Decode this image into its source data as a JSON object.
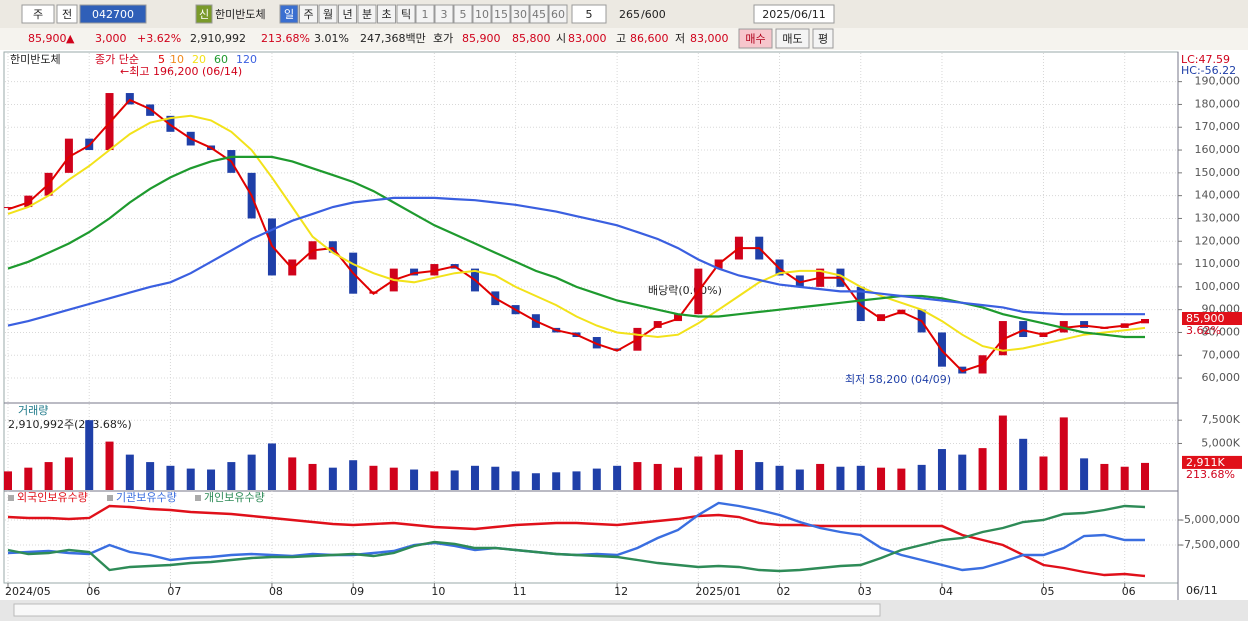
{
  "toolbar": {
    "market": "주",
    "prefix": "전",
    "code": "042700",
    "new": "신",
    "name": "한미반도체",
    "periods": [
      "일",
      "주",
      "월",
      "년",
      "분",
      "초",
      "틱"
    ],
    "intervals": [
      "1",
      "3",
      "5",
      "10",
      "15",
      "30",
      "45",
      "60"
    ],
    "interval_select": "5",
    "count": "265",
    "max": "/600",
    "date": "2025/06/11"
  },
  "quote": {
    "price": "85,900",
    "arrow": "▲",
    "change": "3,000",
    "rate": "+3.62%",
    "volume": "2,910,992",
    "volume_rate": "213.68%",
    "turnover": "3.01%",
    "amount": "247,368백만",
    "ask_label": "호가",
    "ask": "85,900",
    "bid": "85,800",
    "open_label": "시",
    "open": "83,000",
    "high_label": "고",
    "high": "86,600",
    "low_label": "저",
    "low": "83,000",
    "buy": "매수",
    "sell": "매도",
    "avg": "평"
  },
  "categories": [
    "2024/05",
    null,
    null,
    null,
    "06",
    null,
    null,
    null,
    "07",
    null,
    null,
    null,
    null,
    "08",
    null,
    null,
    null,
    "09",
    null,
    null,
    null,
    "10",
    null,
    null,
    null,
    "11",
    null,
    null,
    null,
    null,
    "12",
    null,
    null,
    null,
    "2025/01",
    null,
    null,
    null,
    "02",
    null,
    null,
    null,
    "03",
    null,
    null,
    null,
    "04",
    null,
    null,
    null,
    null,
    "05",
    null,
    null,
    null,
    "06",
    null
  ],
  "end_date": "06/11",
  "price": {
    "name": "한미반도체",
    "ma_label": "종가 단순",
    "up_color": "#d0021b",
    "down_color": "#1f3fa8",
    "ylim": [
      49500,
      203000
    ],
    "yticks": [
      {
        "value": 60000,
        "label": "60,000"
      },
      {
        "value": 70000,
        "label": "70,000"
      },
      {
        "value": 80000,
        "label": "80,000"
      },
      {
        "value": 90000,
        "label": "90,000"
      },
      {
        "value": 100000,
        "label": "100,000"
      },
      {
        "value": 110000,
        "label": "110,000"
      },
      {
        "value": 120000,
        "label": "120,000"
      },
      {
        "value": 130000,
        "label": "130,000"
      },
      {
        "value": 140000,
        "label": "140,000"
      },
      {
        "value": 150000,
        "label": "150,000"
      },
      {
        "value": 160000,
        "label": "160,000"
      },
      {
        "value": 170000,
        "label": "170,000"
      },
      {
        "value": 180000,
        "label": "180,000"
      },
      {
        "value": 190000,
        "label": "190,000"
      }
    ],
    "close": [
      135000,
      140000,
      150000,
      165000,
      160000,
      185000,
      180000,
      175000,
      168000,
      162000,
      160000,
      150000,
      130000,
      105000,
      112000,
      120000,
      115000,
      97000,
      98000,
      108000,
      105000,
      110000,
      108000,
      98000,
      92000,
      88000,
      82000,
      80000,
      78000,
      73000,
      72000,
      82000,
      85000,
      88000,
      108000,
      112000,
      122000,
      112000,
      105000,
      100000,
      108000,
      100000,
      85000,
      88000,
      90000,
      80000,
      65000,
      62000,
      70000,
      85000,
      78000,
      80000,
      85000,
      82000,
      82000,
      84000,
      85900
    ],
    "series": [
      {
        "name": "5",
        "color": "#e00000",
        "values": [
          134000,
          137000,
          145000,
          157000,
          162000,
          172000,
          182000,
          178000,
          171000,
          165000,
          161000,
          155000,
          140000,
          118000,
          108000,
          116000,
          117000,
          106000,
          97000,
          103000,
          106000,
          107000,
          109000,
          103000,
          95000,
          90000,
          85000,
          81000,
          79000,
          75000,
          72000,
          77000,
          83000,
          86000,
          98000,
          110000,
          117000,
          117000,
          108000,
          102000,
          104000,
          104000,
          92000,
          86000,
          89000,
          85000,
          72000,
          63000,
          66000,
          77000,
          81000,
          79000,
          82000,
          83000,
          82000,
          83000,
          85000
        ]
      },
      {
        "name": "20",
        "color": "#f2e21a",
        "values": [
          132000,
          135000,
          140000,
          147000,
          153000,
          160000,
          167000,
          172000,
          174000,
          175000,
          173000,
          168000,
          160000,
          148000,
          135000,
          122000,
          115000,
          110000,
          106000,
          103000,
          102000,
          104000,
          106000,
          107000,
          105000,
          100000,
          96000,
          92000,
          87000,
          83000,
          80000,
          79000,
          78000,
          79000,
          84000,
          90000,
          96000,
          102000,
          106000,
          107000,
          107000,
          105000,
          100000,
          96000,
          93000,
          90000,
          85000,
          79000,
          74000,
          72000,
          73000,
          75000,
          77000,
          79000,
          80000,
          81000,
          82000
        ]
      },
      {
        "name": "60",
        "color": "#1e9a2e",
        "values": [
          108000,
          111000,
          115000,
          119000,
          124000,
          130000,
          137000,
          143000,
          148000,
          152000,
          155000,
          157000,
          157000,
          157000,
          155000,
          152000,
          149000,
          146000,
          142000,
          137000,
          132000,
          127000,
          123000,
          119000,
          115000,
          111000,
          107000,
          104000,
          100000,
          97000,
          94000,
          92000,
          90000,
          88000,
          87000,
          87000,
          88000,
          89000,
          90000,
          91000,
          92000,
          93000,
          94000,
          95000,
          96000,
          96000,
          95000,
          93000,
          91000,
          88000,
          86000,
          84000,
          82000,
          80000,
          79000,
          78000,
          78000
        ]
      },
      {
        "name": "120",
        "color": "#3a5fe0",
        "values": [
          83000,
          85000,
          87500,
          90000,
          92500,
          95000,
          97500,
          100000,
          102000,
          106000,
          111000,
          116000,
          121000,
          125000,
          129000,
          132000,
          135000,
          137000,
          138000,
          139000,
          139000,
          139000,
          138500,
          138000,
          137000,
          136000,
          134500,
          133000,
          131000,
          129000,
          127000,
          124000,
          121000,
          117000,
          112000,
          108000,
          105000,
          103000,
          101000,
          100000,
          99000,
          98000,
          98000,
          97000,
          96000,
          95000,
          94000,
          93000,
          92000,
          91000,
          89000,
          88500,
          88000,
          88000,
          88000,
          88000,
          88000
        ]
      }
    ],
    "extra_legend": [
      {
        "name": "10",
        "color": "#f08a1c"
      }
    ],
    "high_note": "←최고 196,200 (06/14)",
    "low_note": "최저 58,200 (04/09)",
    "dividend_note": "배당락(0.00%)",
    "lc": "LC:47.59",
    "hc": "HC:-56.22",
    "last_price": 85900,
    "last_label": "85,900",
    "last_rate": "3.62%"
  },
  "volume": {
    "name": "거래량",
    "info": "2,910,992주(213.68%)",
    "ylim": [
      0,
      9240
    ],
    "yticks": [
      {
        "value": 5000,
        "label": "5,000K"
      },
      {
        "value": 7500,
        "label": "7,500K"
      }
    ],
    "values": [
      2000,
      2400,
      3000,
      3500,
      7500,
      5200,
      3800,
      3000,
      2600,
      2300,
      2200,
      3000,
      3800,
      5000,
      3500,
      2800,
      2400,
      3200,
      2600,
      2400,
      2200,
      2000,
      2100,
      2600,
      2500,
      2000,
      1800,
      1900,
      2000,
      2300,
      2600,
      3000,
      2800,
      2400,
      3600,
      3800,
      4300,
      3000,
      2600,
      2200,
      2800,
      2500,
      2600,
      2400,
      2300,
      2700,
      4400,
      3800,
      4500,
      8000,
      5500,
      3600,
      7800,
      3400,
      2800,
      2500,
      2911
    ],
    "last_label": "2,911K",
    "last_rate": "213.68%"
  },
  "holdings": {
    "ylim": [
      -11200000,
      -2200000
    ],
    "yticks": [
      {
        "value": -5000000,
        "label": "-5,000,000"
      },
      {
        "value": -7500000,
        "label": "-7,500,000"
      }
    ],
    "series": [
      {
        "name": "외국인보유수량",
        "color": "#e0101a",
        "values": [
          -4700000,
          -4800000,
          -4800000,
          -4900000,
          -4800000,
          -3600000,
          -3700000,
          -3900000,
          -4000000,
          -4200000,
          -4300000,
          -4400000,
          -4600000,
          -4800000,
          -5000000,
          -5200000,
          -5400000,
          -5500000,
          -5400000,
          -5300000,
          -5500000,
          -5700000,
          -5800000,
          -5900000,
          -5700000,
          -5500000,
          -5400000,
          -5300000,
          -5300000,
          -5400000,
          -5500000,
          -5300000,
          -5100000,
          -4900000,
          -4600000,
          -4500000,
          -4700000,
          -5300000,
          -5500000,
          -5500000,
          -5600000,
          -5600000,
          -5600000,
          -5600000,
          -5600000,
          -5600000,
          -5600000,
          -6500000,
          -7000000,
          -7500000,
          -8500000,
          -9500000,
          -9800000,
          -10200000,
          -10500000,
          -10400000,
          -10600000
        ]
      },
      {
        "name": "기관보유수량",
        "color": "#3a6ee0",
        "values": [
          -8300000,
          -8200000,
          -8100000,
          -8300000,
          -8400000,
          -7500000,
          -8200000,
          -8500000,
          -9000000,
          -8800000,
          -8700000,
          -8500000,
          -8400000,
          -8500000,
          -8600000,
          -8400000,
          -8500000,
          -8500000,
          -8300000,
          -8100000,
          -7500000,
          -7300000,
          -7600000,
          -8000000,
          -7800000,
          -8000000,
          -8200000,
          -8400000,
          -8500000,
          -8400000,
          -8500000,
          -7800000,
          -6800000,
          -6000000,
          -4500000,
          -3300000,
          -3600000,
          -4000000,
          -4500000,
          -5200000,
          -5800000,
          -6200000,
          -6500000,
          -7800000,
          -8500000,
          -9000000,
          -9500000,
          -10000000,
          -9800000,
          -9200000,
          -8500000,
          -8500000,
          -7800000,
          -6600000,
          -6500000,
          -7000000,
          -7000000
        ]
      },
      {
        "name": "개인보유수량",
        "color": "#2e8b57",
        "values": [
          -8000000,
          -8400000,
          -8300000,
          -8000000,
          -8200000,
          -10000000,
          -9700000,
          -9600000,
          -9500000,
          -9300000,
          -9200000,
          -9000000,
          -8800000,
          -8700000,
          -8700000,
          -8600000,
          -8500000,
          -8400000,
          -8600000,
          -8300000,
          -7600000,
          -7200000,
          -7400000,
          -7800000,
          -7800000,
          -8000000,
          -8200000,
          -8400000,
          -8500000,
          -8600000,
          -8700000,
          -9000000,
          -9300000,
          -9500000,
          -9700000,
          -9600000,
          -9700000,
          -10000000,
          -10100000,
          -10000000,
          -9800000,
          -9600000,
          -9500000,
          -8800000,
          -8000000,
          -7500000,
          -7000000,
          -6800000,
          -6200000,
          -5800000,
          -5200000,
          -5000000,
          -4400000,
          -4300000,
          -4000000,
          -3600000,
          -3700000
        ]
      }
    ]
  }
}
